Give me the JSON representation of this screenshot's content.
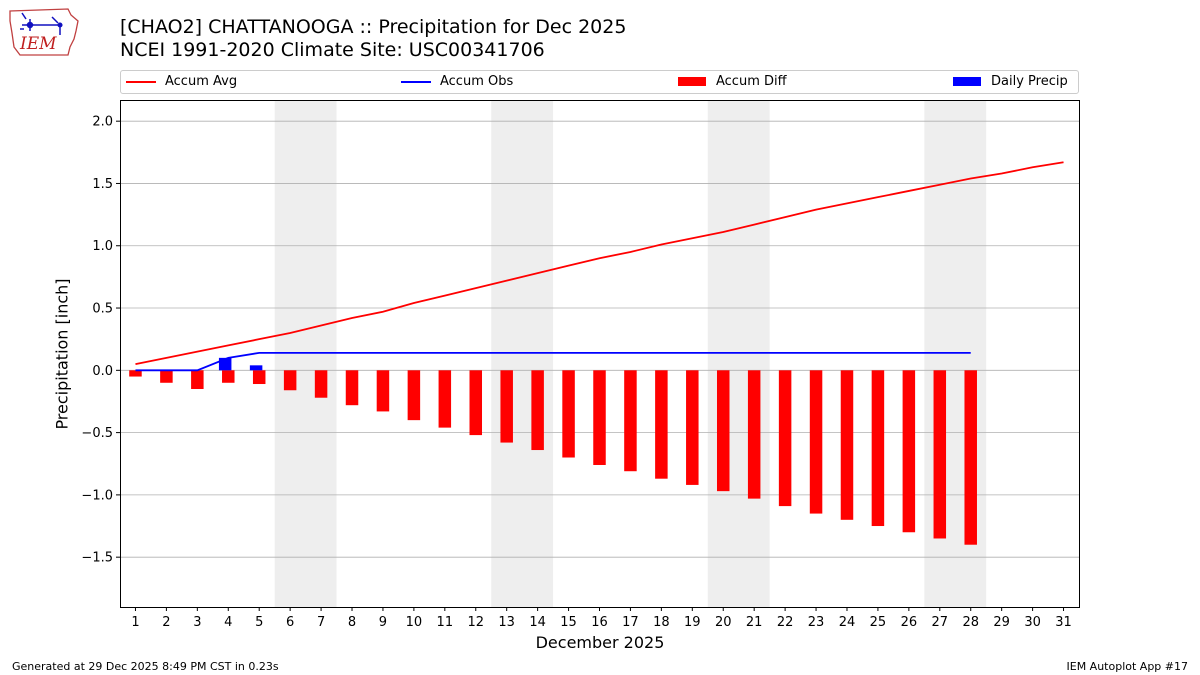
{
  "logo": {
    "text": "IEM",
    "icon": "iowa-map-weather-station-icon"
  },
  "title_line1": "[CHAO2] CHATTANOOGA :: Precipitation for Dec 2025",
  "title_line2": "NCEI 1991-2020 Climate Site: USC00341706",
  "legend": {
    "avg": "Accum Avg",
    "obs": "Accum Obs",
    "diff": "Accum Diff",
    "daily": "Daily Precip"
  },
  "colors": {
    "avg": "#ff0000",
    "obs": "#0000ff",
    "diff": "#ff0000",
    "daily": "#0000ff",
    "weekend": "#eeeeee",
    "grid": "#b0b0b0"
  },
  "footer": {
    "left": "Generated at 29 Dec 2025 8:49 PM CST in 0.23s",
    "right": "IEM Autoplot App #17"
  },
  "chart_data": {
    "type": "bar",
    "title": "[CHAO2] CHATTANOOGA :: Precipitation for Dec 2025",
    "subtitle": "NCEI 1991-2020 Climate Site: USC00341706",
    "xlabel": "December 2025",
    "ylabel": "Precipitation [inch]",
    "ylim": [
      -1.9,
      2.17
    ],
    "xlim": [
      0.5,
      31.5
    ],
    "yticks": [
      -1.5,
      -1.0,
      -0.5,
      0.0,
      0.5,
      1.0,
      1.5,
      2.0
    ],
    "ytick_labels": [
      "−1.5",
      "−1.0",
      "−0.5",
      "0.0",
      "0.5",
      "1.0",
      "1.5",
      "2.0"
    ],
    "grid": "horizontal",
    "legend_position": "top",
    "weekend_shading": [
      [
        5.5,
        7.5
      ],
      [
        12.5,
        14.5
      ],
      [
        19.5,
        21.5
      ],
      [
        26.5,
        28.5
      ]
    ],
    "days": [
      1,
      2,
      3,
      4,
      5,
      6,
      7,
      8,
      9,
      10,
      11,
      12,
      13,
      14,
      15,
      16,
      17,
      18,
      19,
      20,
      21,
      22,
      23,
      24,
      25,
      26,
      27,
      28,
      29,
      30,
      31
    ],
    "series": [
      {
        "name": "Accum Avg",
        "type": "line",
        "values": [
          0.05,
          0.1,
          0.15,
          0.2,
          0.25,
          0.3,
          0.36,
          0.42,
          0.47,
          0.54,
          0.6,
          0.66,
          0.72,
          0.78,
          0.84,
          0.9,
          0.95,
          1.01,
          1.06,
          1.11,
          1.17,
          1.23,
          1.29,
          1.34,
          1.39,
          1.44,
          1.49,
          1.54,
          1.58,
          1.63,
          1.67
        ]
      },
      {
        "name": "Accum Obs",
        "type": "line",
        "values": [
          0.0,
          0.0,
          0.0,
          0.1,
          0.14,
          0.14,
          0.14,
          0.14,
          0.14,
          0.14,
          0.14,
          0.14,
          0.14,
          0.14,
          0.14,
          0.14,
          0.14,
          0.14,
          0.14,
          0.14,
          0.14,
          0.14,
          0.14,
          0.14,
          0.14,
          0.14,
          0.14,
          0.14
        ]
      },
      {
        "name": "Accum Diff",
        "type": "bar",
        "values": [
          -0.05,
          -0.1,
          -0.15,
          -0.1,
          -0.11,
          -0.16,
          -0.22,
          -0.28,
          -0.33,
          -0.4,
          -0.46,
          -0.52,
          -0.58,
          -0.64,
          -0.7,
          -0.76,
          -0.81,
          -0.87,
          -0.92,
          -0.97,
          -1.03,
          -1.09,
          -1.15,
          -1.2,
          -1.25,
          -1.3,
          -1.35,
          -1.4
        ]
      },
      {
        "name": "Daily Precip",
        "type": "bar",
        "values": [
          0.0,
          0.0,
          0.0,
          0.1,
          0.04,
          0.0,
          0.0,
          0.0,
          0.0,
          0.0,
          0.0,
          0.0,
          0.0,
          0.0,
          0.0,
          0.0,
          0.0,
          0.0,
          0.0,
          0.0,
          0.0,
          0.0,
          0.0,
          0.0,
          0.0,
          0.0,
          0.0,
          0.0
        ]
      }
    ]
  }
}
